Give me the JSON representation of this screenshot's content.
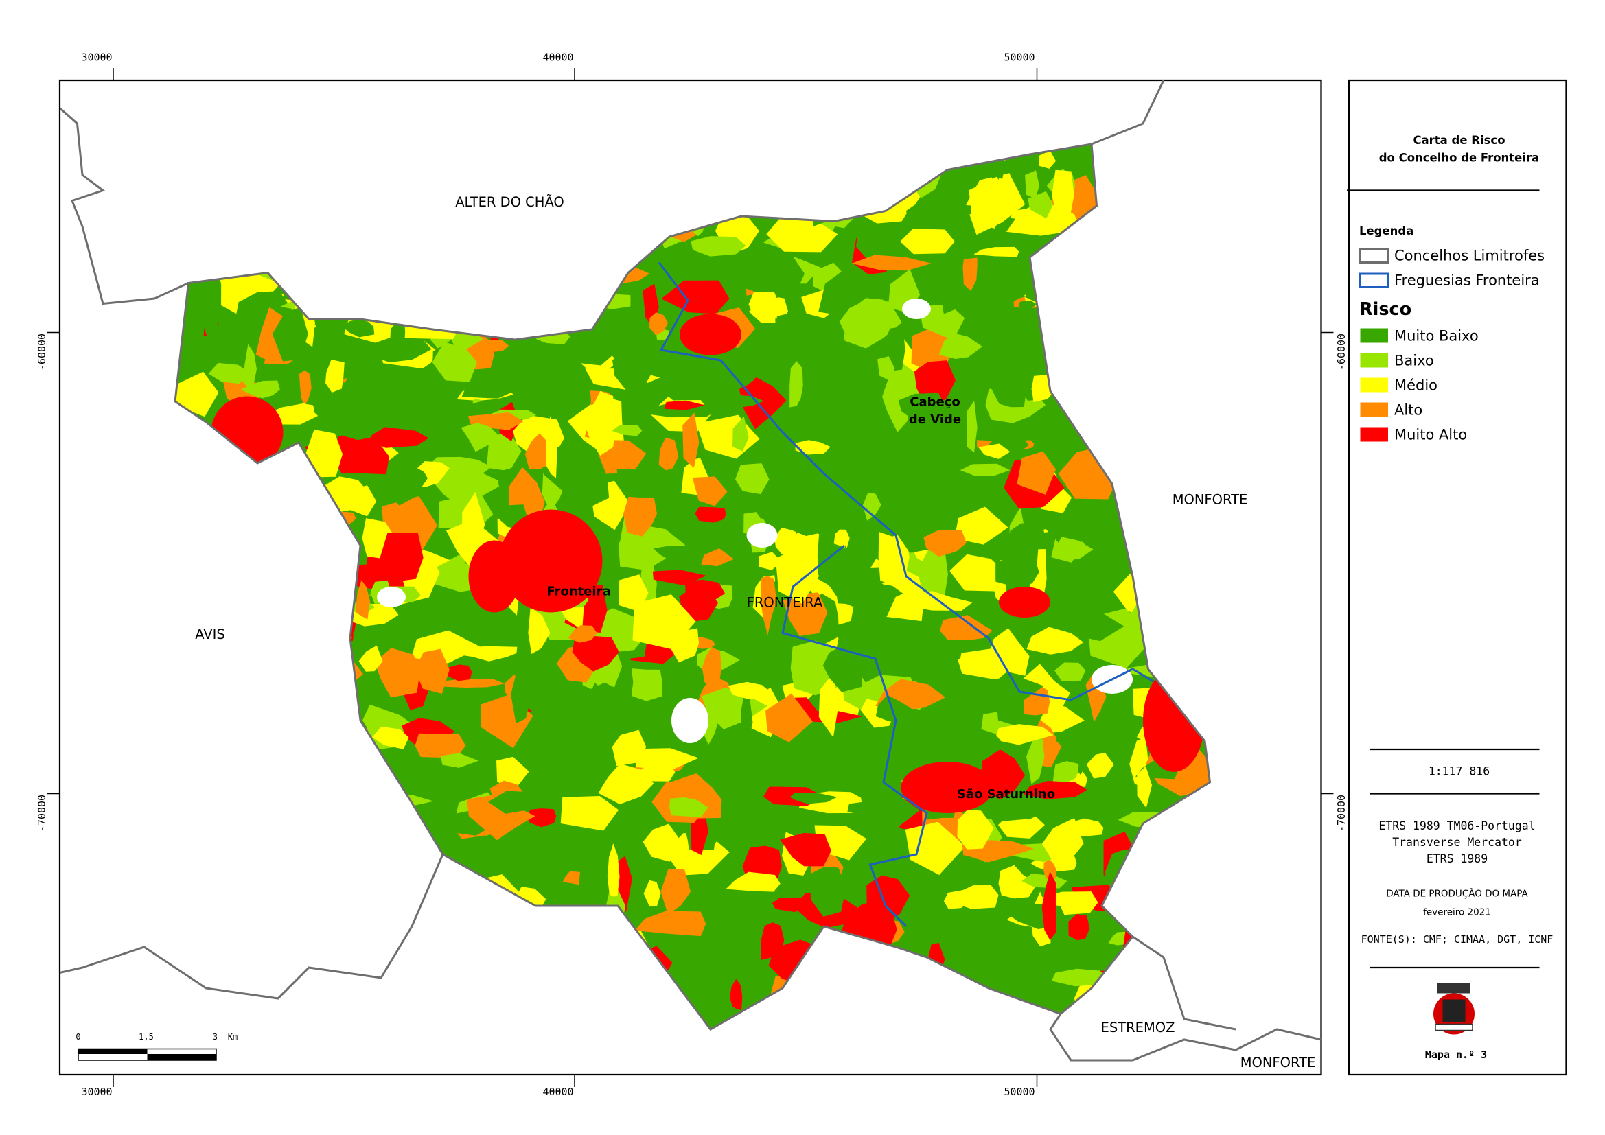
{
  "map": {
    "grid_labels": {
      "top": [
        "30000",
        "40000",
        "50000"
      ],
      "bottom": [
        "30000",
        "40000",
        "50000"
      ],
      "left": [
        "-60000",
        "-70000"
      ],
      "right": [
        "-60000",
        "-70000"
      ]
    },
    "neighbours": [
      "ALTER DO CHÃO",
      "MONFORTE",
      "AVIS",
      "ESTREMOZ",
      "MONFORTE"
    ],
    "places": [
      {
        "lines": [
          "Fronteira"
        ]
      },
      {
        "lines": [
          "Cabeço",
          "de Vide"
        ]
      },
      {
        "lines": [
          "São Saturnino"
        ]
      },
      {
        "lines": [
          "FRONTEIRA"
        ]
      }
    ],
    "scalebar": [
      "0",
      "1,5",
      "3",
      "Km"
    ]
  },
  "legend_panel": {
    "title": [
      "Carta de Risco",
      "do Concelho de Fronteira"
    ],
    "legend_heading": "Legenda",
    "boundaries": [
      {
        "label": "Concelhos Limitrofes",
        "color": "#6e6e6e"
      },
      {
        "label": "Freguesias Fronteira",
        "color": "#1f5fbf"
      }
    ],
    "risk_heading": "Risco",
    "risk_classes": [
      {
        "label": "Muito Baixo",
        "color": "#38a800"
      },
      {
        "label": "Baixo",
        "color": "#98e600"
      },
      {
        "label": "Médio",
        "color": "#ffff00"
      },
      {
        "label": "Alto",
        "color": "#ff8c00"
      },
      {
        "label": "Muito Alto",
        "color": "#ff0000"
      }
    ],
    "scale": "1:117 816",
    "projection": [
      "ETRS 1989 TM06-Portugal",
      "Transverse Mercator",
      "ETRS 1989"
    ],
    "date_heading": "DATA DE PRODUÇÃO DO MAPA",
    "date": "fevereiro 2021",
    "sources": "FONTE(S): CMF; CIMAA, DGT, ICNF",
    "map_number": "Mapa n.º 3"
  }
}
